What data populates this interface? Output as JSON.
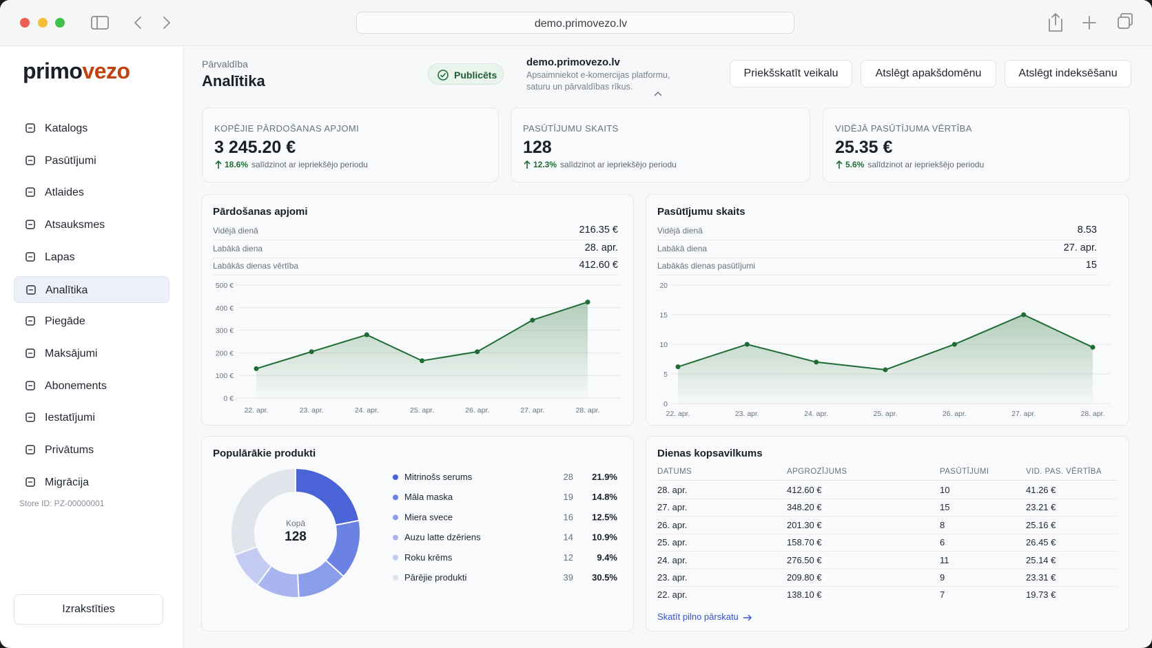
{
  "browser": {
    "url": "demo.primovezo.lv"
  },
  "sidebar": {
    "logo": {
      "dark": "primo",
      "accent": "vezo"
    },
    "nav": [
      "Katalogs",
      "Pasūtījumi",
      "Atlaides",
      "Atsauksmes",
      "Lapas",
      "Analītika",
      "Piegāde",
      "Maksājumi",
      "Abonements",
      "Iestatījumi",
      "Privātums",
      "Migrācija"
    ],
    "active_index": 5,
    "store_id": "Store ID: PZ-00000001",
    "logout": "Izrakstīties"
  },
  "header": {
    "breadcrumb": "Pārvaldība",
    "title": "Analītika",
    "status": "Publicēts",
    "site_name": "demo.primovezo.lv",
    "site_description": "Apsaimniekot e-komercijas platformu, saturu un pārvaldības rīkus.",
    "buttons": [
      "Priekšskatīt veikalu",
      "Atslēgt apakšdomēnu",
      "Atslēgt indeksēšanu"
    ]
  },
  "kpis": [
    {
      "label": "KOPĒJIE PĀRDOŠANAS APJOMI",
      "value": "3 245.20 €",
      "change": "18.6%",
      "note": "salīdzinot ar iepriekšējo periodu"
    },
    {
      "label": "PASŪTĪJUMU SKAITS",
      "value": "128",
      "change": "12.3%",
      "note": "salīdzinot ar iepriekšējo periodu"
    },
    {
      "label": "VIDĒJĀ PASŪTĪJUMA VĒRTĪBA",
      "value": "25.35 €",
      "change": "5.6%",
      "note": "salīdzinot ar iepriekšējo periodu"
    }
  ],
  "sales_chart": {
    "type": "line",
    "title": "Pārdošanas apjomi",
    "stats": [
      {
        "label": "Vidējā dienā",
        "value": "216.35 €"
      },
      {
        "label": "Labākā diena",
        "value": "28. apr."
      },
      {
        "label": "Labākās dienas vērtība",
        "value": "412.60 €"
      }
    ],
    "categories": [
      "22. apr.",
      "23. apr.",
      "24. apr.",
      "25. apr.",
      "26. apr.",
      "27. apr.",
      "28. apr."
    ],
    "values": [
      130,
      205,
      280,
      165,
      205,
      345,
      425
    ],
    "color": "#1e6b34",
    "ylim": [
      0,
      500
    ],
    "yticks": [
      {
        "value": 0,
        "label": "0 €"
      },
      {
        "value": 100,
        "label": "100 €"
      },
      {
        "value": 200,
        "label": "200 €"
      },
      {
        "value": 300,
        "label": "300 €"
      },
      {
        "value": 400,
        "label": "400 €"
      },
      {
        "value": 500,
        "label": "500 €"
      }
    ],
    "grid": true
  },
  "orders_chart": {
    "type": "line",
    "title": "Pasūtījumu skaits",
    "stats": [
      {
        "label": "Vidējā dienā",
        "value": "8.53"
      },
      {
        "label": "Labākā diena",
        "value": "27. apr."
      },
      {
        "label": "Labākās dienas pasūtījumi",
        "value": "15"
      }
    ],
    "categories": [
      "22. apr.",
      "23. apr.",
      "24. apr.",
      "25. apr.",
      "26. apr.",
      "27. apr.",
      "28. apr."
    ],
    "values": [
      6.2,
      10,
      7,
      5.7,
      10,
      15,
      9.5
    ],
    "color": "#1e6b34",
    "ylim": [
      0,
      20
    ],
    "yticks": [
      0,
      5,
      10,
      15,
      20
    ],
    "grid": true
  },
  "products_chart": {
    "type": "donut",
    "title": "Populārākie produkti",
    "center_label": "Kopā",
    "center_value": "128",
    "categories": [
      "Mitrinošs serums",
      "Māla maska",
      "Miera svece",
      "Auzu latte dzēriens",
      "Roku krēms",
      "Pārējie produkti"
    ],
    "counts": [
      28,
      19,
      16,
      14,
      12,
      39
    ],
    "values": [
      21.9,
      14.8,
      12.5,
      10.9,
      9.4,
      30.5
    ],
    "value_labels": [
      "21.9%",
      "14.8%",
      "12.5%",
      "10.9%",
      "9.4%",
      "30.5%"
    ],
    "colors": [
      "#4a63d6",
      "#6b82e2",
      "#8a9de8",
      "#a8b5ee",
      "#c3cbf3",
      "#e2e4ec"
    ]
  },
  "daily_summary": {
    "title": "Dienas kopsavilkums",
    "columns": [
      "DATUMS",
      "APGROZĪJUMS",
      "PASŪTĪJUMI",
      "VID. PAS. VĒRTĪBA"
    ],
    "rows": [
      [
        "28. apr.",
        "412.60 €",
        "10",
        "41.26 €"
      ],
      [
        "27. apr.",
        "348.20 €",
        "15",
        "23.21 €"
      ],
      [
        "26. apr.",
        "201.30 €",
        "8",
        "25.16 €"
      ],
      [
        "25. apr.",
        "158.70 €",
        "6",
        "26.45 €"
      ],
      [
        "24. apr.",
        "276.50 €",
        "11",
        "25.14 €"
      ],
      [
        "23. apr.",
        "209.80 €",
        "9",
        "23.31 €"
      ],
      [
        "22. apr.",
        "138.10 €",
        "7",
        "19.73 €"
      ]
    ],
    "link": "Skatīt pilno pārskatu"
  }
}
